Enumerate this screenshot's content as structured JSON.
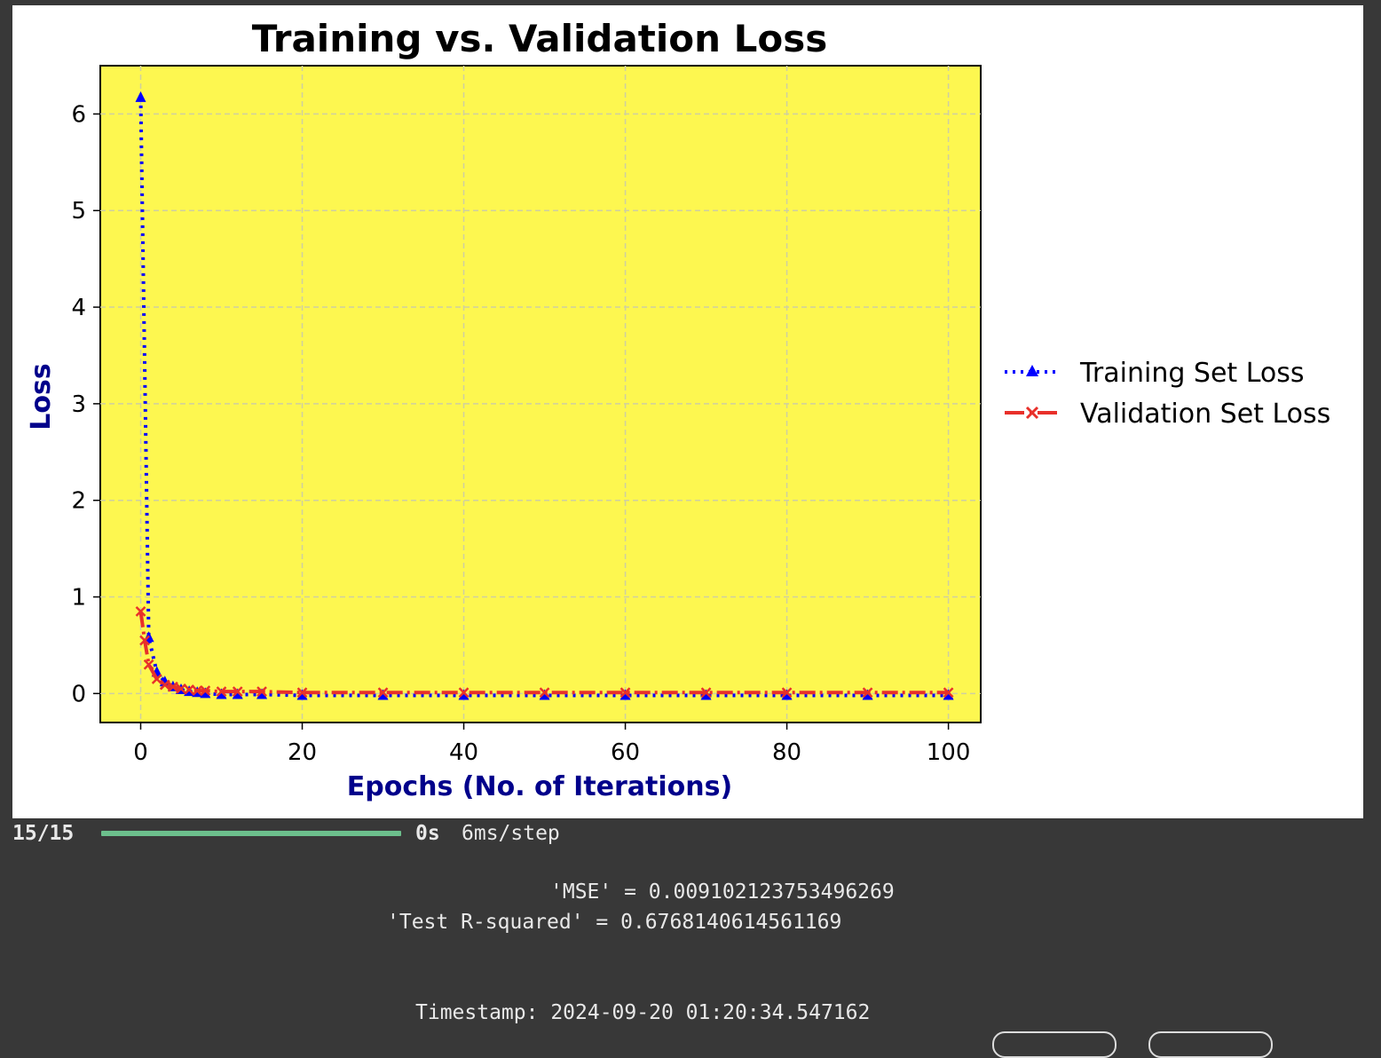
{
  "chart_data": {
    "type": "line",
    "title": "Training vs. Validation Loss",
    "xlabel": "Epochs (No. of Iterations)",
    "ylabel": "Loss",
    "xlim": [
      -5,
      104
    ],
    "ylim": [
      -0.3,
      6.5
    ],
    "xticks": [
      0,
      20,
      40,
      60,
      80,
      100
    ],
    "yticks": [
      0,
      1,
      2,
      3,
      4,
      5,
      6
    ],
    "grid": true,
    "legend": "outside-right",
    "background_color": "#fdf750",
    "series": [
      {
        "name": "Training Set Loss",
        "color": "#0000ff",
        "marker": "triangle",
        "linestyle": "dotted",
        "x": [
          0,
          1,
          2,
          3,
          4,
          5,
          6,
          7,
          8,
          10,
          12,
          15,
          20,
          30,
          40,
          50,
          60,
          70,
          80,
          90,
          100
        ],
        "y": [
          6.17,
          0.58,
          0.22,
          0.12,
          0.07,
          0.04,
          0.02,
          0.01,
          0.0,
          -0.01,
          -0.01,
          -0.01,
          -0.02,
          -0.02,
          -0.02,
          -0.02,
          -0.02,
          -0.02,
          -0.02,
          -0.02,
          -0.02
        ]
      },
      {
        "name": "Validation Set Loss",
        "color": "#e8302a",
        "marker": "x",
        "linestyle": "dashdot",
        "x": [
          0,
          0.5,
          1,
          2,
          3,
          4,
          5,
          6,
          7,
          8,
          10,
          12,
          15,
          20,
          30,
          40,
          50,
          60,
          70,
          80,
          90,
          100
        ],
        "y": [
          0.85,
          0.55,
          0.3,
          0.15,
          0.09,
          0.07,
          0.05,
          0.04,
          0.03,
          0.03,
          0.02,
          0.02,
          0.02,
          0.01,
          0.01,
          0.01,
          0.01,
          0.01,
          0.01,
          0.01,
          0.01,
          0.01
        ]
      }
    ]
  },
  "console": {
    "progress_count": "15/15",
    "progress_fraction": 1.0,
    "progress_time": "0s",
    "progress_rate": "6ms/step",
    "mse_line": "'MSE' = 0.009102123753496269",
    "r2_line": "'Test R-squared' = 0.6768140614561169",
    "timestamp_line": "Timestamp: 2024-09-20 01:20:34.547162"
  }
}
